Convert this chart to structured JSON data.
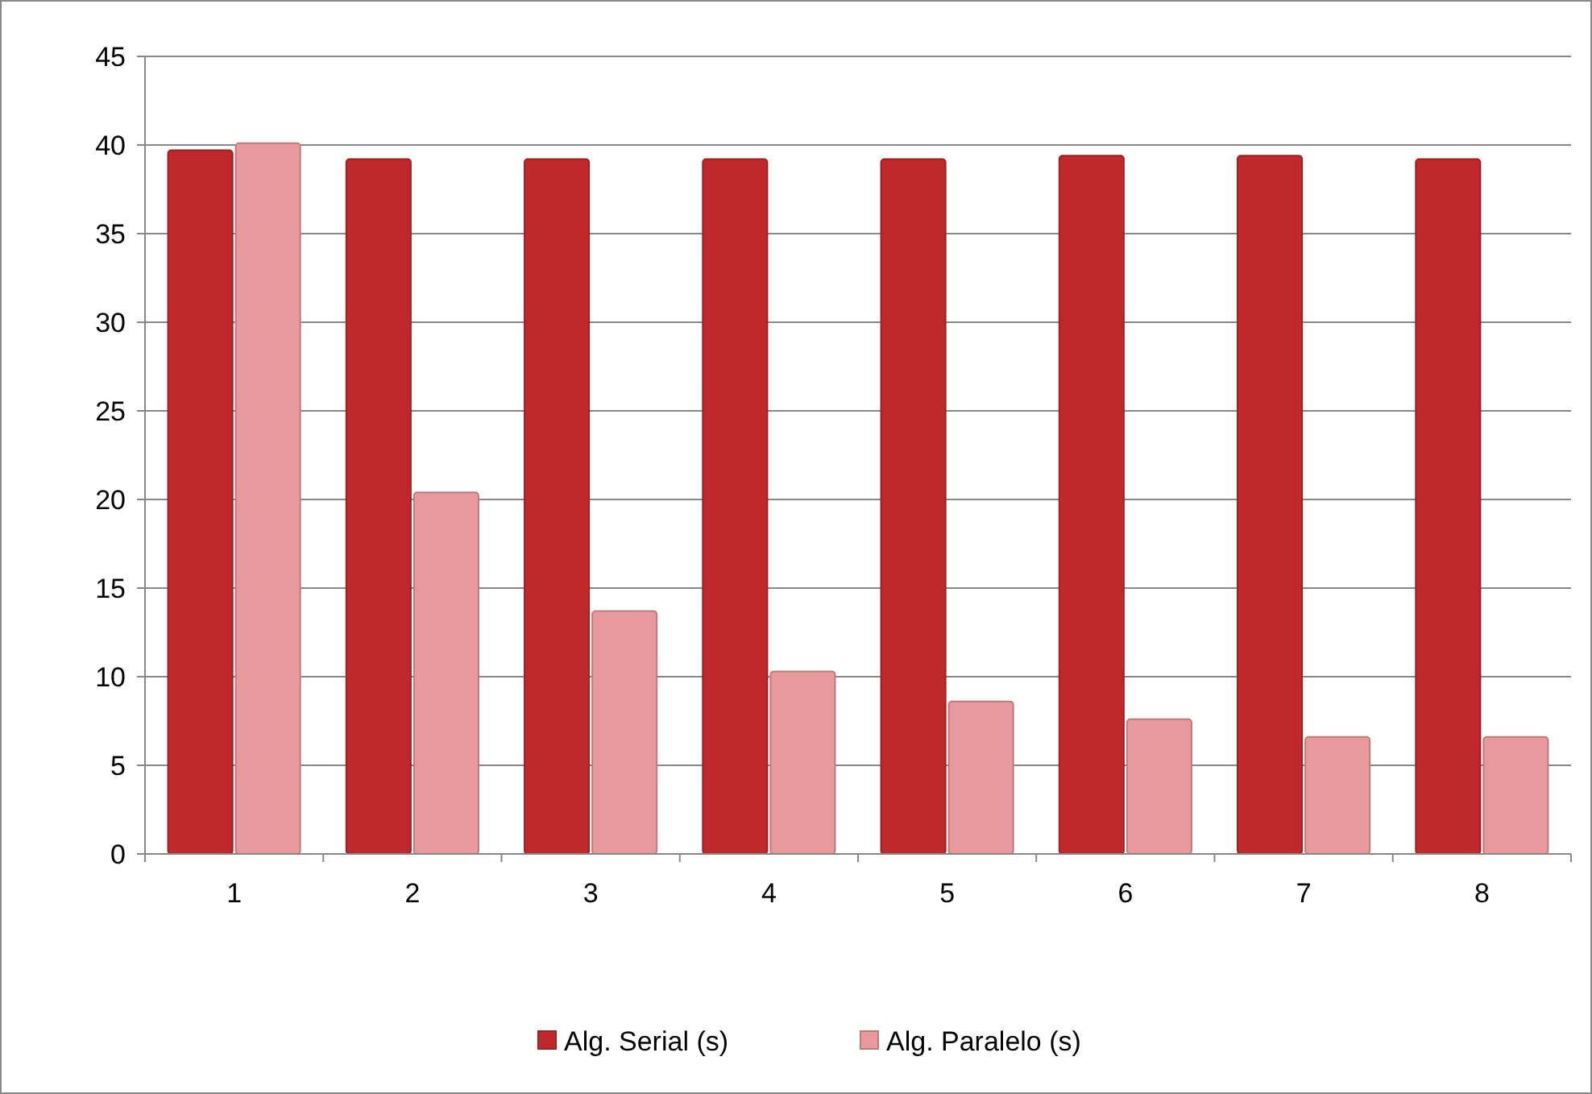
{
  "chart_data": {
    "type": "bar",
    "categories": [
      "1",
      "2",
      "3",
      "4",
      "5",
      "6",
      "7",
      "8"
    ],
    "series": [
      {
        "name": "Alg. Serial (s)",
        "color": "#c0292b",
        "values": [
          39.7,
          39.2,
          39.2,
          39.2,
          39.2,
          39.4,
          39.4,
          39.2
        ]
      },
      {
        "name": "Alg. Paralelo (s)",
        "color": "#e8999b",
        "values": [
          40.1,
          20.4,
          13.7,
          10.3,
          8.6,
          7.6,
          6.6,
          6.6
        ]
      }
    ],
    "ylim": [
      0,
      45
    ],
    "yticks": [
      0,
      5,
      10,
      15,
      20,
      25,
      30,
      35,
      40,
      45
    ],
    "grid": "y",
    "legend": "bottom"
  }
}
